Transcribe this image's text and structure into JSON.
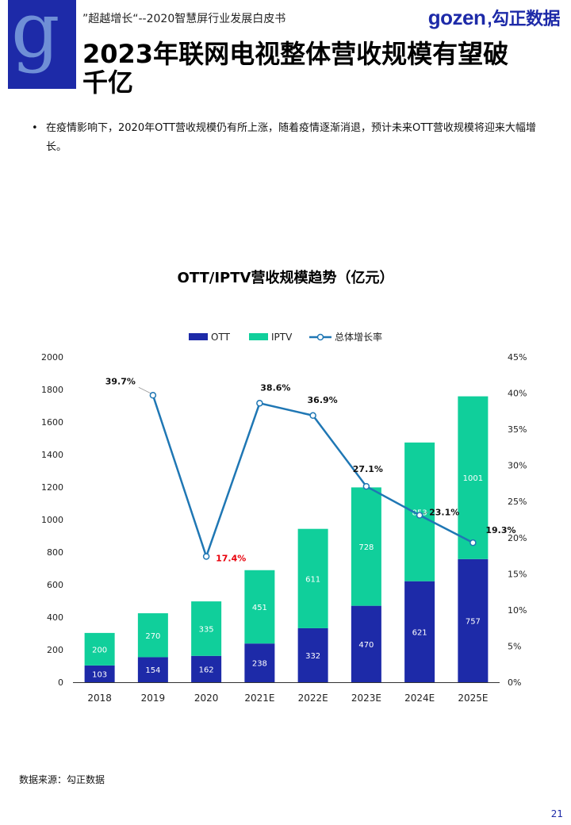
{
  "header": {
    "subtitle": "”超越增长“--2020智慧屏行业发展白皮书",
    "brand_name": "gozen",
    "brand_cn": ",勾正数据",
    "logo_letter": "g"
  },
  "page_title": "2023年联网电视整体营收规模有望破千亿",
  "bullet_text": "在疫情影响下，2020年OTT营收规模仍有所上涨，随着疫情逐渐消退，预计未来OTT营收规模将迎来大幅增长。",
  "colors": {
    "ott": "#1d2aa8",
    "iptv": "#10cf9b",
    "rate": "#1f77b4",
    "highlight": "#e8000b"
  },
  "chart_data": {
    "type": "bar",
    "title": "OTT/IPTV营收规模趋势（亿元）",
    "categories": [
      "2018",
      "2019",
      "2020",
      "2021E",
      "2022E",
      "2023E",
      "2024E",
      "2025E"
    ],
    "series": [
      {
        "name": "OTT",
        "type": "bar",
        "stacked": true,
        "values": [
          103,
          154,
          162,
          238,
          332,
          470,
          621,
          757
        ]
      },
      {
        "name": "IPTV",
        "type": "bar",
        "stacked": true,
        "values": [
          200,
          270,
          335,
          451,
          611,
          728,
          853,
          1001
        ]
      },
      {
        "name": "总体增长率",
        "type": "line",
        "axis": "right",
        "values": [
          null,
          39.7,
          17.4,
          38.6,
          36.9,
          27.1,
          23.1,
          19.3
        ],
        "labels": [
          "",
          "39.7%",
          "17.4%",
          "38.6%",
          "36.9%",
          "27.1%",
          "23.1%",
          "19.3%"
        ]
      }
    ],
    "ylim": [
      0,
      2000
    ],
    "yticks": [
      "0",
      "200",
      "400",
      "600",
      "800",
      "1000",
      "1200",
      "1400",
      "1600",
      "1800",
      "2000"
    ],
    "y2lim": [
      0,
      45
    ],
    "y2ticks": [
      "0%",
      "5%",
      "10%",
      "15%",
      "20%",
      "25%",
      "30%",
      "35%",
      "40%",
      "45%"
    ],
    "legend_position": "top-center",
    "highlight_index": 2
  },
  "source": "数据来源：勾正数据",
  "page_number": "21"
}
